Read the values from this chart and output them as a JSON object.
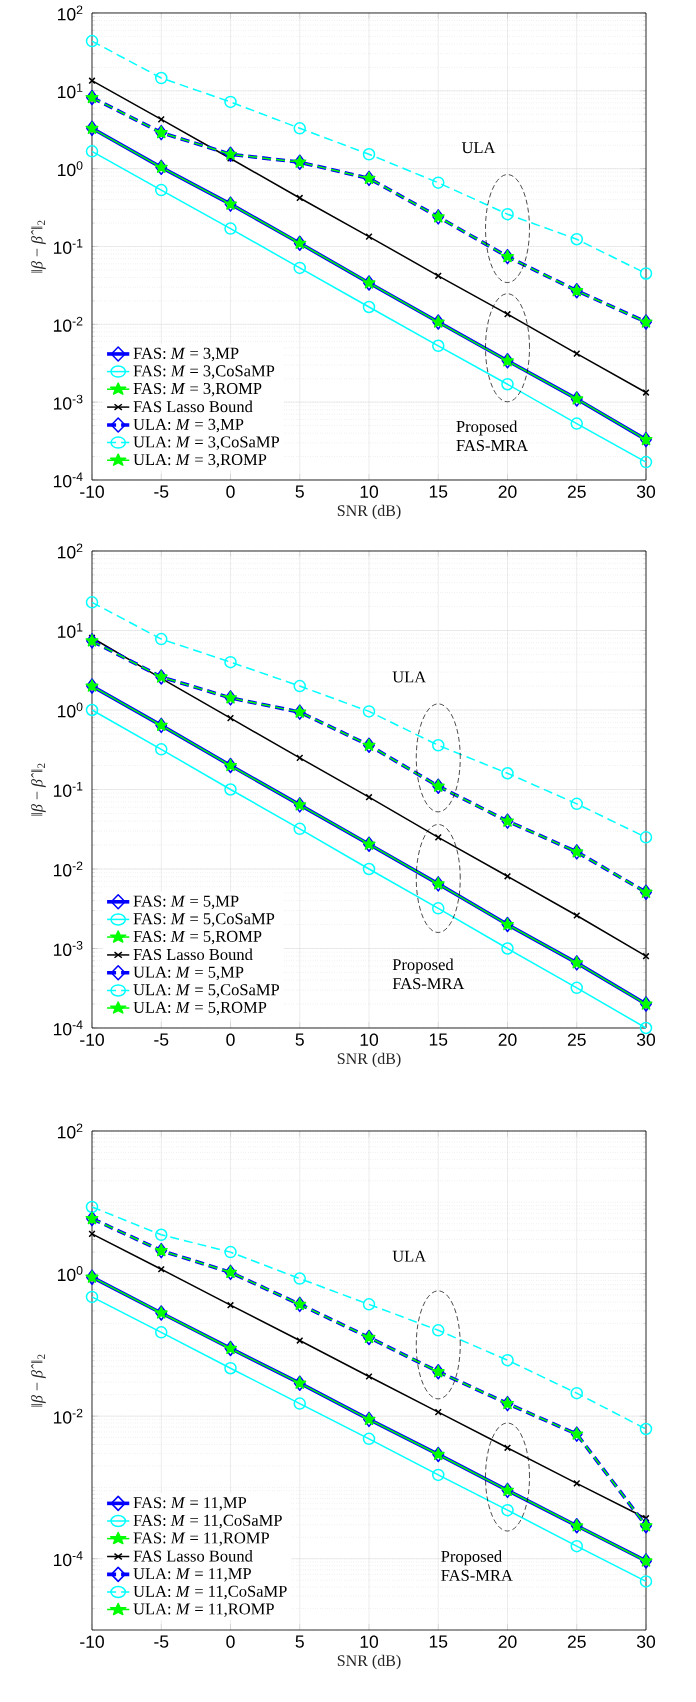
{
  "chart_data": [
    {
      "type": "line",
      "xlabel": "SNR (dB)",
      "ylabel": "‖*β* − *β̂*‖$_{2}$",
      "log": "y",
      "grid": true,
      "legend": "bottom left",
      "x": [
        -10,
        -5,
        0,
        5,
        10,
        15,
        20,
        25,
        30
      ],
      "xlim": [
        -10,
        30
      ],
      "xticks": [
        -10,
        -5,
        0,
        5,
        10,
        15,
        20,
        25,
        30
      ],
      "ylim": [
        0.0001,
        100
      ],
      "yticks": [
        {
          "value": 0.0001,
          "label": "10$^{-4}$"
        },
        {
          "value": 0.001,
          "label": "10$^{-3}$"
        },
        {
          "value": 0.01,
          "label": "10$^{-2}$"
        },
        {
          "value": 0.1,
          "label": "10$^{-1}$"
        },
        {
          "value": 1,
          "label": "10$^{0}$"
        },
        {
          "value": 10,
          "label": "10$^{1}$"
        },
        {
          "value": 100,
          "label": "10$^{2}$"
        }
      ],
      "annotations": [
        "ULA",
        "Proposed FAS-MRA"
      ],
      "series": [
        {
          "name": "FAS: *M* = 3,MP",
          "color": "#0000ff",
          "marker": "diamond",
          "line_style": "solid",
          "values": [
            3.3,
            1.04,
            0.35,
            0.11,
            0.034,
            0.0107,
            0.0034,
            0.0011,
            0.00033
          ]
        },
        {
          "name": "FAS: *M* = 3,CoSaMP",
          "color": "#00ffff",
          "marker": "circle",
          "line_style": "solid",
          "values": [
            1.67,
            0.53,
            0.17,
            0.053,
            0.0167,
            0.0053,
            0.0017,
            0.00053,
            0.00017
          ]
        },
        {
          "name": "FAS: *M* = 3,ROMP",
          "color": "#00ff00",
          "marker": "star",
          "line_style": "solid",
          "values": [
            3.3,
            1.04,
            0.35,
            0.11,
            0.034,
            0.0107,
            0.0034,
            0.0011,
            0.00033
          ]
        },
        {
          "name": "FAS Lasso Bound",
          "color": "#000000",
          "marker": "cross",
          "line_style": "solid",
          "values": [
            13.5,
            4.3,
            1.35,
            0.42,
            0.134,
            0.042,
            0.0135,
            0.0042,
            0.00133
          ]
        },
        {
          "name": "ULA: *M* = 3,MP",
          "color": "#0000ff",
          "marker": "diamond",
          "line_style": "dashed",
          "values": [
            8.2,
            2.9,
            1.53,
            1.21,
            0.75,
            0.24,
            0.074,
            0.027,
            0.0107
          ]
        },
        {
          "name": "ULA: *M* = 3,CoSaMP",
          "color": "#00ffff",
          "marker": "circle",
          "line_style": "dashed",
          "values": [
            43.5,
            14.6,
            7.2,
            3.3,
            1.53,
            0.66,
            0.26,
            0.124,
            0.045
          ]
        },
        {
          "name": "ULA: *M* = 3,ROMP",
          "color": "#00ff00",
          "marker": "star",
          "line_style": "dashed",
          "values": [
            8.2,
            2.9,
            1.53,
            1.21,
            0.75,
            0.24,
            0.074,
            0.027,
            0.0107
          ]
        }
      ]
    },
    {
      "type": "line",
      "xlabel": "SNR (dB)",
      "ylabel": "‖*β* − *β̂*‖$_{2}$",
      "log": "y",
      "grid": true,
      "legend": "bottom left",
      "x": [
        -10,
        -5,
        0,
        5,
        10,
        15,
        20,
        25,
        30
      ],
      "xlim": [
        -10,
        30
      ],
      "xticks": [
        -10,
        -5,
        0,
        5,
        10,
        15,
        20,
        25,
        30
      ],
      "ylim": [
        0.0001,
        100
      ],
      "yticks": [
        {
          "value": 0.0001,
          "label": "10$^{-4}$"
        },
        {
          "value": 0.001,
          "label": "10$^{-3}$"
        },
        {
          "value": 0.01,
          "label": "10$^{-2}$"
        },
        {
          "value": 0.1,
          "label": "10$^{-1}$"
        },
        {
          "value": 1,
          "label": "10$^{0}$"
        },
        {
          "value": 10,
          "label": "10$^{1}$"
        },
        {
          "value": 100,
          "label": "10$^{2}$"
        }
      ],
      "annotations": [
        "ULA",
        "Proposed FAS-MRA"
      ],
      "series": [
        {
          "name": "FAS: *M* = 5,MP",
          "color": "#0000ff",
          "marker": "diamond",
          "line_style": "solid",
          "values": [
            2.0,
            0.64,
            0.2,
            0.064,
            0.0205,
            0.0065,
            0.002,
            0.00066,
            0.0002
          ]
        },
        {
          "name": "FAS: *M* = 5,CoSaMP",
          "color": "#00ffff",
          "marker": "circle",
          "line_style": "solid",
          "values": [
            1.0,
            0.32,
            0.1,
            0.032,
            0.01,
            0.0032,
            0.001,
            0.00032,
            0.0001
          ]
        },
        {
          "name": "FAS: *M* = 5,ROMP",
          "color": "#00ff00",
          "marker": "star",
          "line_style": "solid",
          "values": [
            2.0,
            0.64,
            0.2,
            0.064,
            0.0205,
            0.0065,
            0.002,
            0.00066,
            0.0002
          ]
        },
        {
          "name": "FAS Lasso Bound",
          "color": "#000000",
          "marker": "cross",
          "line_style": "solid",
          "values": [
            8.1,
            2.5,
            0.79,
            0.25,
            0.08,
            0.025,
            0.0081,
            0.0026,
            0.0008
          ]
        },
        {
          "name": "ULA: *M* = 5,MP",
          "color": "#0000ff",
          "marker": "diamond",
          "line_style": "dashed",
          "values": [
            7.4,
            2.6,
            1.42,
            0.94,
            0.36,
            0.11,
            0.04,
            0.0164,
            0.0051
          ]
        },
        {
          "name": "ULA: *M* = 5,CoSaMP",
          "color": "#00ffff",
          "marker": "circle",
          "line_style": "dashed",
          "values": [
            22.6,
            7.8,
            4.0,
            2.0,
            0.96,
            0.36,
            0.16,
            0.066,
            0.025
          ]
        },
        {
          "name": "ULA: *M* = 5,ROMP",
          "color": "#00ff00",
          "marker": "star",
          "line_style": "dashed",
          "values": [
            7.4,
            2.6,
            1.42,
            0.94,
            0.36,
            0.11,
            0.04,
            0.0164,
            0.0051
          ]
        }
      ]
    },
    {
      "type": "line",
      "xlabel": "SNR (dB)",
      "ylabel": "‖*β* − *β̂*‖$_{2}$",
      "log": "y",
      "grid": true,
      "legend": "bottom left",
      "x": [
        -10,
        -5,
        0,
        5,
        10,
        15,
        20,
        25,
        30
      ],
      "xlim": [
        -10,
        30
      ],
      "xticks": [
        -10,
        -5,
        0,
        5,
        10,
        15,
        20,
        25,
        30
      ],
      "ylim": [
        1e-05,
        100
      ],
      "yticks": [
        {
          "value": 0.0001,
          "label": "10$^{-4}$"
        },
        {
          "value": 0.01,
          "label": "10$^{-2}$"
        },
        {
          "value": 1,
          "label": "10$^{0}$"
        },
        {
          "value": 100,
          "label": "10$^{2}$"
        }
      ],
      "annotations": [
        "ULA",
        "Proposed FAS-MRA"
      ],
      "series": [
        {
          "name": "FAS: *M* = 11,MP",
          "color": "#0000ff",
          "marker": "diamond",
          "line_style": "solid",
          "values": [
            0.89,
            0.28,
            0.089,
            0.029,
            0.009,
            0.0029,
            0.00091,
            0.00029,
            9.3e-05
          ]
        },
        {
          "name": "FAS: *M* = 11,CoSaMP",
          "color": "#00ffff",
          "marker": "circle",
          "line_style": "solid",
          "values": [
            0.47,
            0.15,
            0.047,
            0.015,
            0.0048,
            0.0015,
            0.00048,
            0.00015,
            4.8e-05
          ]
        },
        {
          "name": "FAS: *M* = 11,ROMP",
          "color": "#00ff00",
          "marker": "star",
          "line_style": "solid",
          "values": [
            0.89,
            0.28,
            0.089,
            0.029,
            0.009,
            0.0029,
            0.00091,
            0.00029,
            9.3e-05
          ]
        },
        {
          "name": "FAS Lasso Bound",
          "color": "#000000",
          "marker": "cross",
          "line_style": "solid",
          "values": [
            3.6,
            1.15,
            0.36,
            0.115,
            0.036,
            0.0114,
            0.0036,
            0.00114,
            0.00037
          ]
        },
        {
          "name": "ULA: *M* = 11,MP",
          "color": "#0000ff",
          "marker": "diamond",
          "line_style": "dashed",
          "values": [
            5.9,
            2.1,
            1.04,
            0.37,
            0.127,
            0.042,
            0.015,
            0.0056,
            0.00029
          ]
        },
        {
          "name": "ULA: *M* = 11,CoSaMP",
          "color": "#00ffff",
          "marker": "circle",
          "line_style": "dashed",
          "values": [
            8.6,
            3.5,
            2.0,
            0.85,
            0.37,
            0.16,
            0.061,
            0.021,
            0.0066
          ]
        },
        {
          "name": "ULA: *M* = 11,ROMP",
          "color": "#00ff00",
          "marker": "star",
          "line_style": "dashed",
          "values": [
            5.9,
            2.1,
            1.04,
            0.37,
            0.127,
            0.042,
            0.015,
            0.0056,
            0.00029
          ]
        }
      ]
    }
  ]
}
